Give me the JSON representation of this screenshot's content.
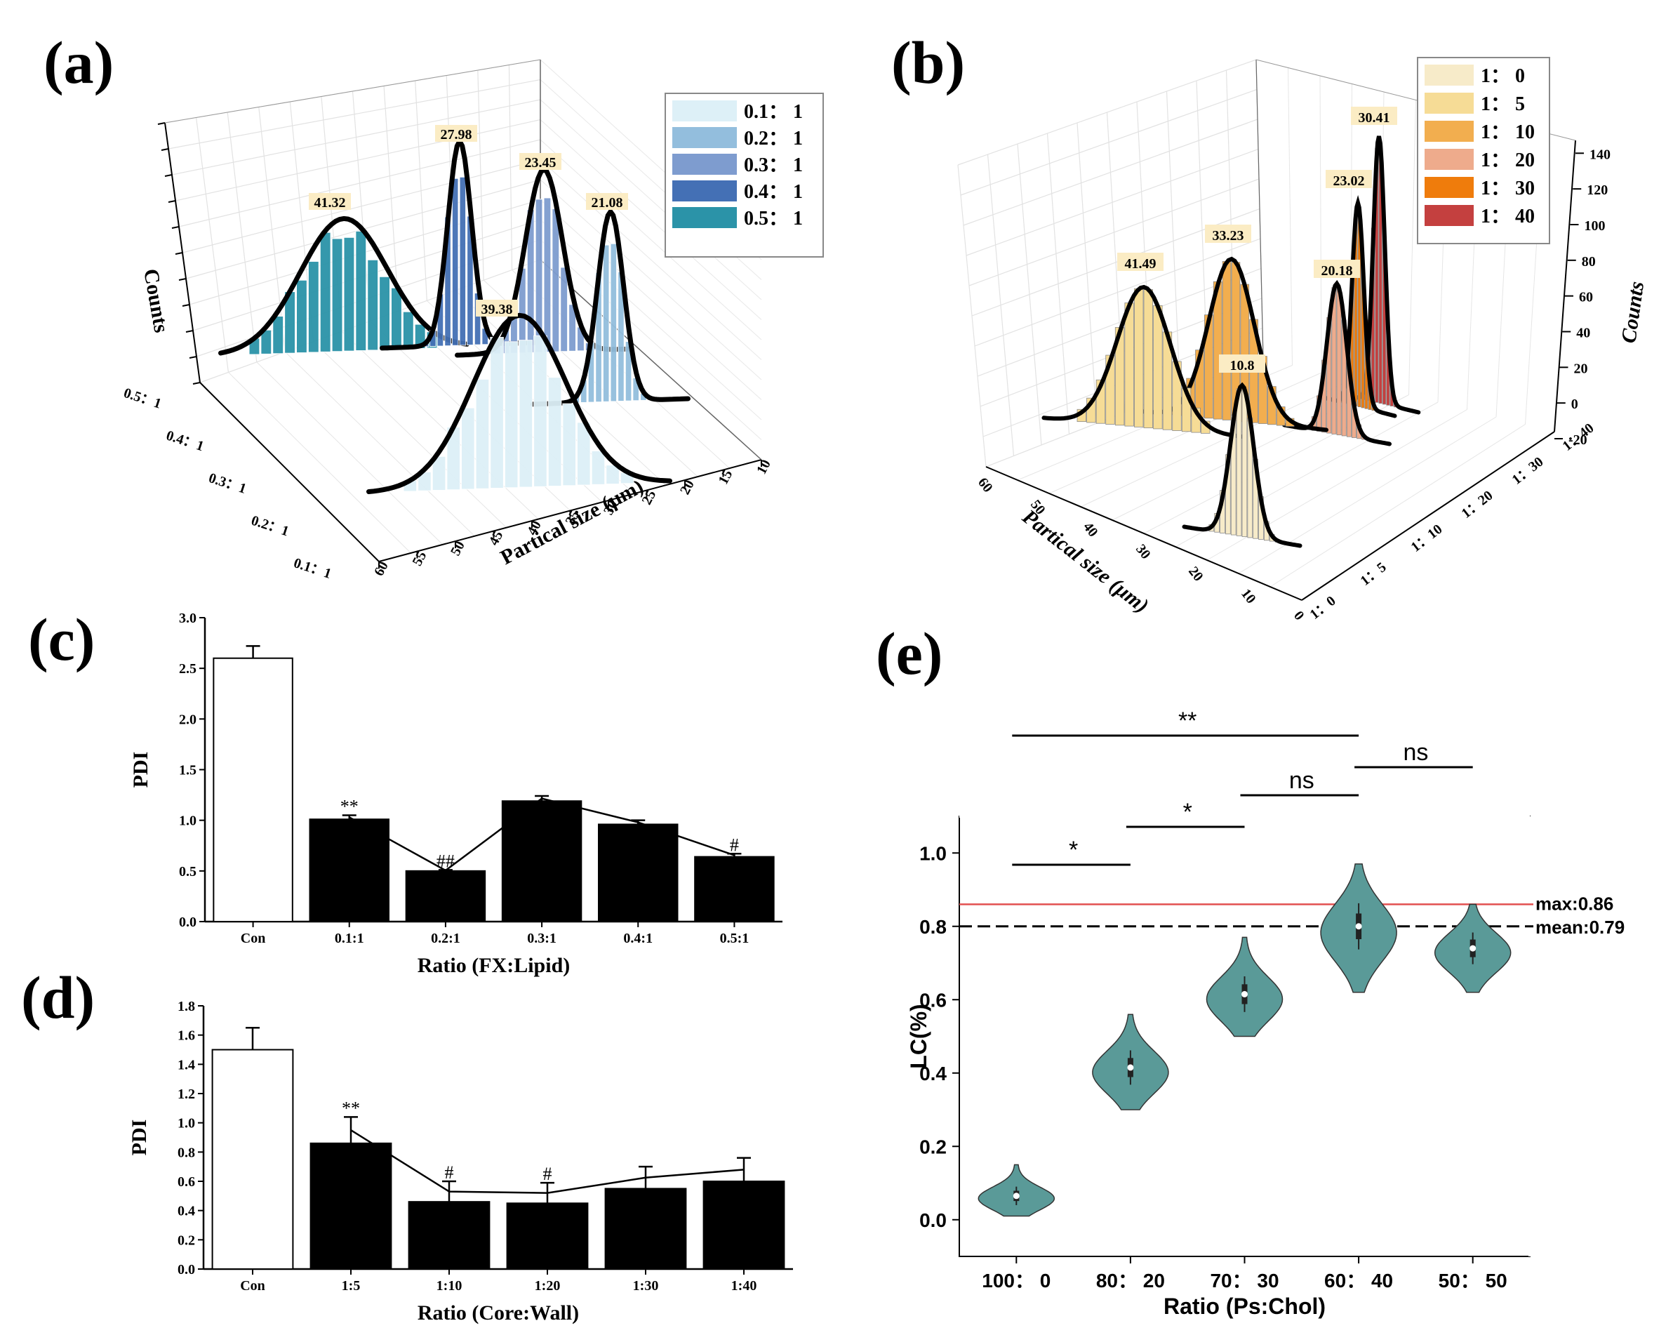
{
  "chart_data": [
    {
      "panel": "(a)",
      "type": "bar",
      "subtype": "3d-histogram-with-gaussian-fit",
      "xlabel": "Partical size (μm)",
      "ylabel": "",
      "zlabel": "Counts",
      "x_ticks": [
        "60",
        "55",
        "50",
        "45",
        "40",
        "35",
        "30",
        "25",
        "20",
        "15",
        "10"
      ],
      "y_ticks": [
        "0.1：1",
        "0.2：1",
        "0.3：1",
        "0.4：1",
        "0.5：1"
      ],
      "legend_position": "top-right",
      "series": [
        {
          "name": "0.1：1",
          "peak": 39.38,
          "color": "#ddf0f7"
        },
        {
          "name": "0.2：1",
          "peak": 21.08,
          "color": "#93bedd"
        },
        {
          "name": "0.3：1",
          "peak": 23.45,
          "color": "#7e9ccf"
        },
        {
          "name": "0.4：1",
          "peak": 27.98,
          "color": "#4470b5"
        },
        {
          "name": "0.5：1",
          "peak": 41.32,
          "color": "#2b93a8"
        }
      ]
    },
    {
      "panel": "(b)",
      "type": "bar",
      "subtype": "3d-histogram-with-gaussian-fit",
      "xlabel": "Partical size (μm)",
      "ylabel": "",
      "zlabel": "Counts",
      "x_ticks": [
        "60",
        "50",
        "40",
        "30",
        "20",
        "10",
        "0"
      ],
      "y_ticks": [
        "1：0",
        "1：5",
        "1：10",
        "1：20",
        "1：30",
        "1：40"
      ],
      "z_ticks": [
        "-20",
        "0",
        "20",
        "40",
        "60",
        "80",
        "100",
        "120",
        "140"
      ],
      "legend_position": "top-right",
      "series": [
        {
          "name": "1： 0",
          "peak": 10.8,
          "color": "#f7ebc9"
        },
        {
          "name": "1： 5",
          "peak": 41.49,
          "color": "#f6dc96"
        },
        {
          "name": "1： 10",
          "peak": 33.23,
          "color": "#f2ae4f"
        },
        {
          "name": "1： 20",
          "peak": 20.18,
          "color": "#eeab8c"
        },
        {
          "name": "1： 30",
          "peak": 23.02,
          "color": "#ef7c0c"
        },
        {
          "name": "1： 40",
          "peak": 30.41,
          "color": "#c4403f"
        }
      ]
    },
    {
      "panel": "(c)",
      "type": "bar",
      "xlabel": "Ratio (FX:Lipid)",
      "ylabel": "PDI",
      "ylim": [
        0,
        3.0
      ],
      "y_ticks": [
        "0.0",
        "0.5",
        "1.0",
        "1.5",
        "2.0",
        "2.5",
        "3.0"
      ],
      "categories": [
        "Con",
        "0.1:1",
        "0.2:1",
        "0.3:1",
        "0.4:1",
        "0.5:1"
      ],
      "values": [
        2.6,
        1.01,
        0.5,
        1.19,
        0.96,
        0.64
      ],
      "errors": [
        0.12,
        0.04,
        0.01,
        0.05,
        0.04,
        0.03
      ],
      "annotations": [
        "",
        "**",
        "##",
        "",
        "",
        "#"
      ]
    },
    {
      "panel": "(d)",
      "type": "bar",
      "xlabel": "Ratio (Core:Wall)",
      "ylabel": "PDI",
      "ylim": [
        0,
        1.8
      ],
      "y_ticks": [
        "0.0",
        "0.2",
        "0.4",
        "0.6",
        "0.8",
        "1.0",
        "1.2",
        "1.4",
        "1.6",
        "1.8"
      ],
      "categories": [
        "Con",
        "1:5",
        "1:10",
        "1:20",
        "1:30",
        "1:40"
      ],
      "values": [
        1.5,
        0.86,
        0.46,
        0.45,
        0.55,
        0.6
      ],
      "errors": [
        0.15,
        0.18,
        0.14,
        0.14,
        0.15,
        0.16
      ],
      "annotations": [
        "",
        "**",
        "#",
        "#",
        "",
        ""
      ]
    },
    {
      "panel": "(e)",
      "type": "violin",
      "xlabel": "Ratio (Ps:Chol)",
      "ylabel": "LC(%)",
      "ylim": [
        -0.1,
        1.1
      ],
      "y_ticks": [
        "0.0",
        "0.2",
        "0.4",
        "0.6",
        "0.8",
        "1.0"
      ],
      "categories": [
        "100： 0",
        "80： 20",
        "70： 30",
        "60： 40",
        "50： 50"
      ],
      "medians": [
        0.065,
        0.415,
        0.615,
        0.8,
        0.74
      ],
      "ranges": [
        [
          0.01,
          0.15
        ],
        [
          0.3,
          0.56
        ],
        [
          0.5,
          0.77
        ],
        [
          0.62,
          0.97
        ],
        [
          0.62,
          0.86
        ]
      ],
      "max_line": {
        "value": 0.86,
        "label": "max:0.86",
        "color": "#e25050"
      },
      "mean_line": {
        "value": 0.8,
        "label": "mean:0.79",
        "color": "#000000"
      },
      "violin_color": "#5a9a98",
      "significance": [
        {
          "label": "**",
          "from": 0,
          "to": 3
        },
        {
          "label": "ns",
          "from": 3,
          "to": 4
        },
        {
          "label": "ns",
          "from": 2,
          "to": 3
        },
        {
          "label": "*",
          "from": 1,
          "to": 2
        },
        {
          "label": "*",
          "from": 0,
          "to": 1
        }
      ]
    }
  ],
  "panels": {
    "a": "(a)",
    "b": "(b)",
    "c": "(c)",
    "d": "(d)",
    "e": "(e)"
  }
}
